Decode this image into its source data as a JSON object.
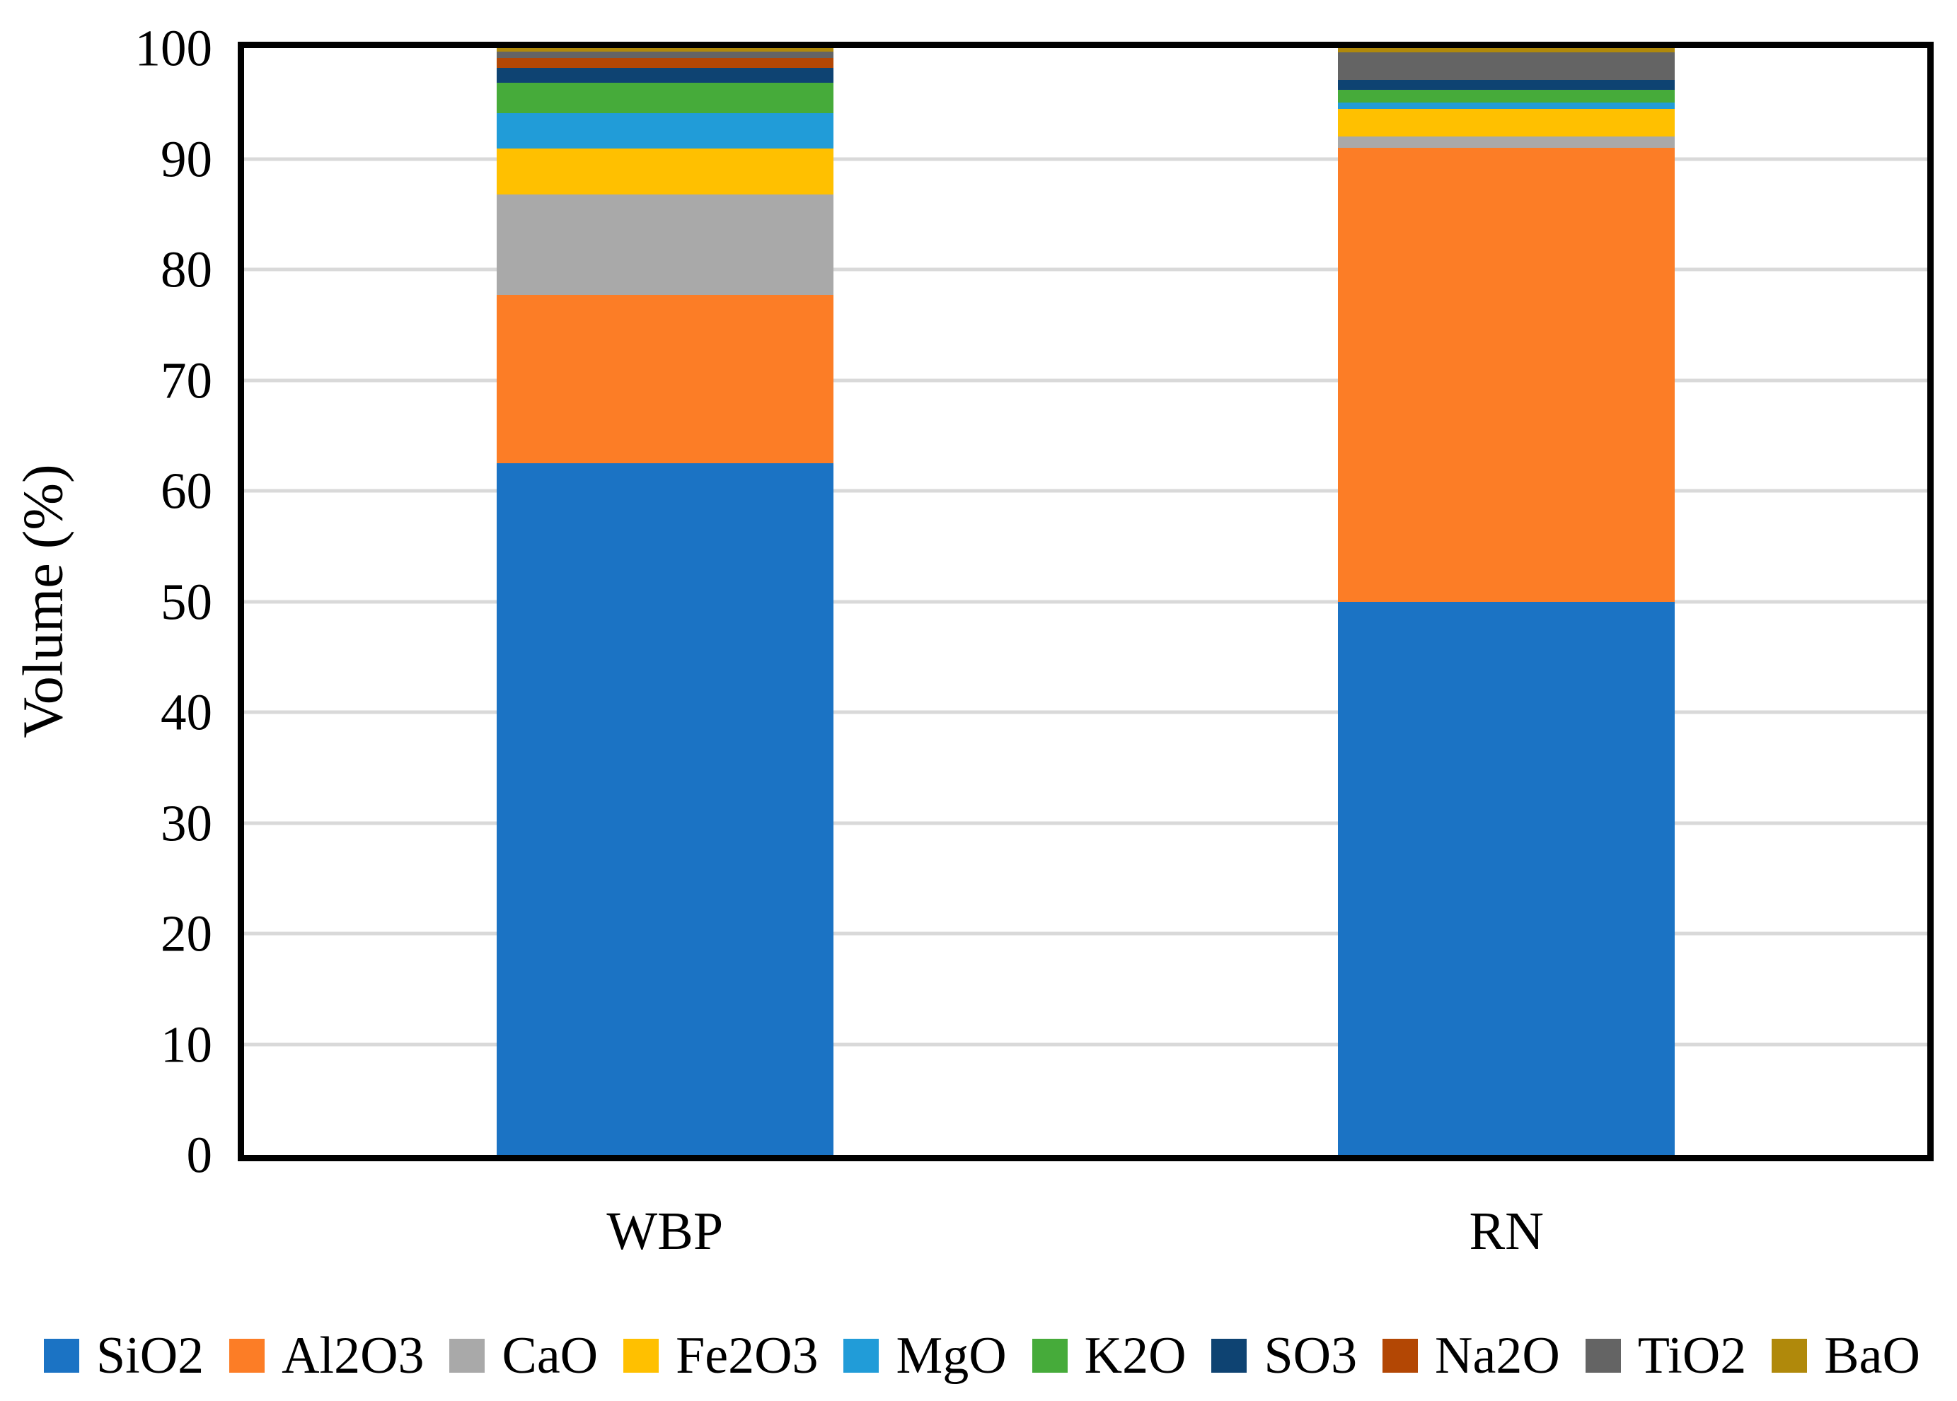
{
  "chart_data": {
    "type": "bar",
    "stacked": true,
    "title": "",
    "xlabel": "",
    "ylabel": "Volume (%)",
    "ylim": [
      0,
      100
    ],
    "yticks": [
      0,
      10,
      20,
      30,
      40,
      50,
      60,
      70,
      80,
      90,
      100
    ],
    "grid": "horizontal",
    "gridline_color": "#d9d9d9",
    "axis_border_color": "#000000",
    "legend_position": "bottom",
    "categories": [
      "WBP",
      "RN"
    ],
    "series": [
      {
        "name": "SiO2",
        "color": "#1b73c4",
        "values": [
          62.5,
          50.0
        ]
      },
      {
        "name": "Al2O3",
        "color": "#fc7d26",
        "values": [
          15.2,
          41.0
        ]
      },
      {
        "name": "CaO",
        "color": "#a9a9a9",
        "values": [
          9.1,
          1.0
        ]
      },
      {
        "name": "Fe2O3",
        "color": "#ffc000",
        "values": [
          4.1,
          2.5
        ]
      },
      {
        "name": "MgO",
        "color": "#219cd8",
        "values": [
          3.2,
          0.6
        ]
      },
      {
        "name": "K2O",
        "color": "#46ab3a",
        "values": [
          2.8,
          1.1
        ]
      },
      {
        "name": "SO3",
        "color": "#0e4372",
        "values": [
          1.3,
          0.9
        ]
      },
      {
        "name": "Na2O",
        "color": "#b34704",
        "values": [
          0.9,
          0.0
        ]
      },
      {
        "name": "TiO2",
        "color": "#646464",
        "values": [
          0.6,
          2.5
        ]
      },
      {
        "name": "BaO",
        "color": "#b0890b",
        "values": [
          0.3,
          0.4
        ]
      }
    ]
  }
}
